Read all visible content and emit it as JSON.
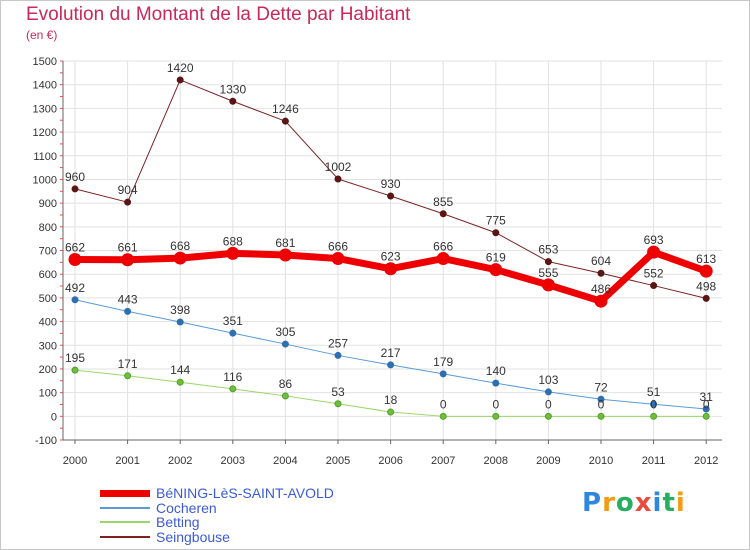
{
  "title": "Evolution du Montant de la Dette par Habitant",
  "subtitle": "(en €)",
  "logo": {
    "text": "Proxiti",
    "letters": [
      "P",
      "r",
      "o",
      "x",
      "i",
      "t",
      "i"
    ],
    "colors": [
      "#2e86de",
      "#f39c12",
      "#27ae60",
      "#e74c3c",
      "#2e86de",
      "#27ae60",
      "#f39c12"
    ]
  },
  "chart_data": {
    "type": "line",
    "title": "Evolution du Montant de la Dette par Habitant",
    "ylabel": "(en €)",
    "xlabel": "",
    "x": [
      "2000",
      "2001",
      "2002",
      "2003",
      "2004",
      "2005",
      "2006",
      "2007",
      "2008",
      "2009",
      "2010",
      "2011",
      "2012"
    ],
    "ylim": [
      -100,
      1500
    ],
    "yticks": [
      -100,
      0,
      100,
      200,
      300,
      400,
      500,
      600,
      700,
      800,
      900,
      1000,
      1100,
      1200,
      1300,
      1400,
      1500
    ],
    "grid": true,
    "legend_position": "bottom-left",
    "series": [
      {
        "name": "Seingbouse",
        "color": "#7b2323",
        "values": [
          960,
          904,
          1420,
          1330,
          1246,
          1002,
          930,
          855,
          775,
          653,
          604,
          552,
          498
        ]
      },
      {
        "name": "Cocheren",
        "color": "#5b9bd5",
        "values": [
          492,
          443,
          398,
          351,
          305,
          257,
          217,
          179,
          140,
          103,
          72,
          51,
          31
        ]
      },
      {
        "name": "Betting",
        "color": "#9ad66a",
        "values": [
          195,
          171,
          144,
          116,
          86,
          53,
          18,
          0,
          0,
          0,
          0,
          0,
          0
        ]
      },
      {
        "name": "BéNING-LèS-SAINT-AVOLD",
        "color": "#ee0000",
        "values": [
          662,
          661,
          668,
          688,
          681,
          666,
          623,
          666,
          619,
          555,
          486,
          693,
          613
        ]
      }
    ],
    "legend_order": [
      "BéNING-LèS-SAINT-AVOLD",
      "Cocheren",
      "Betting",
      "Seingbouse"
    ]
  }
}
